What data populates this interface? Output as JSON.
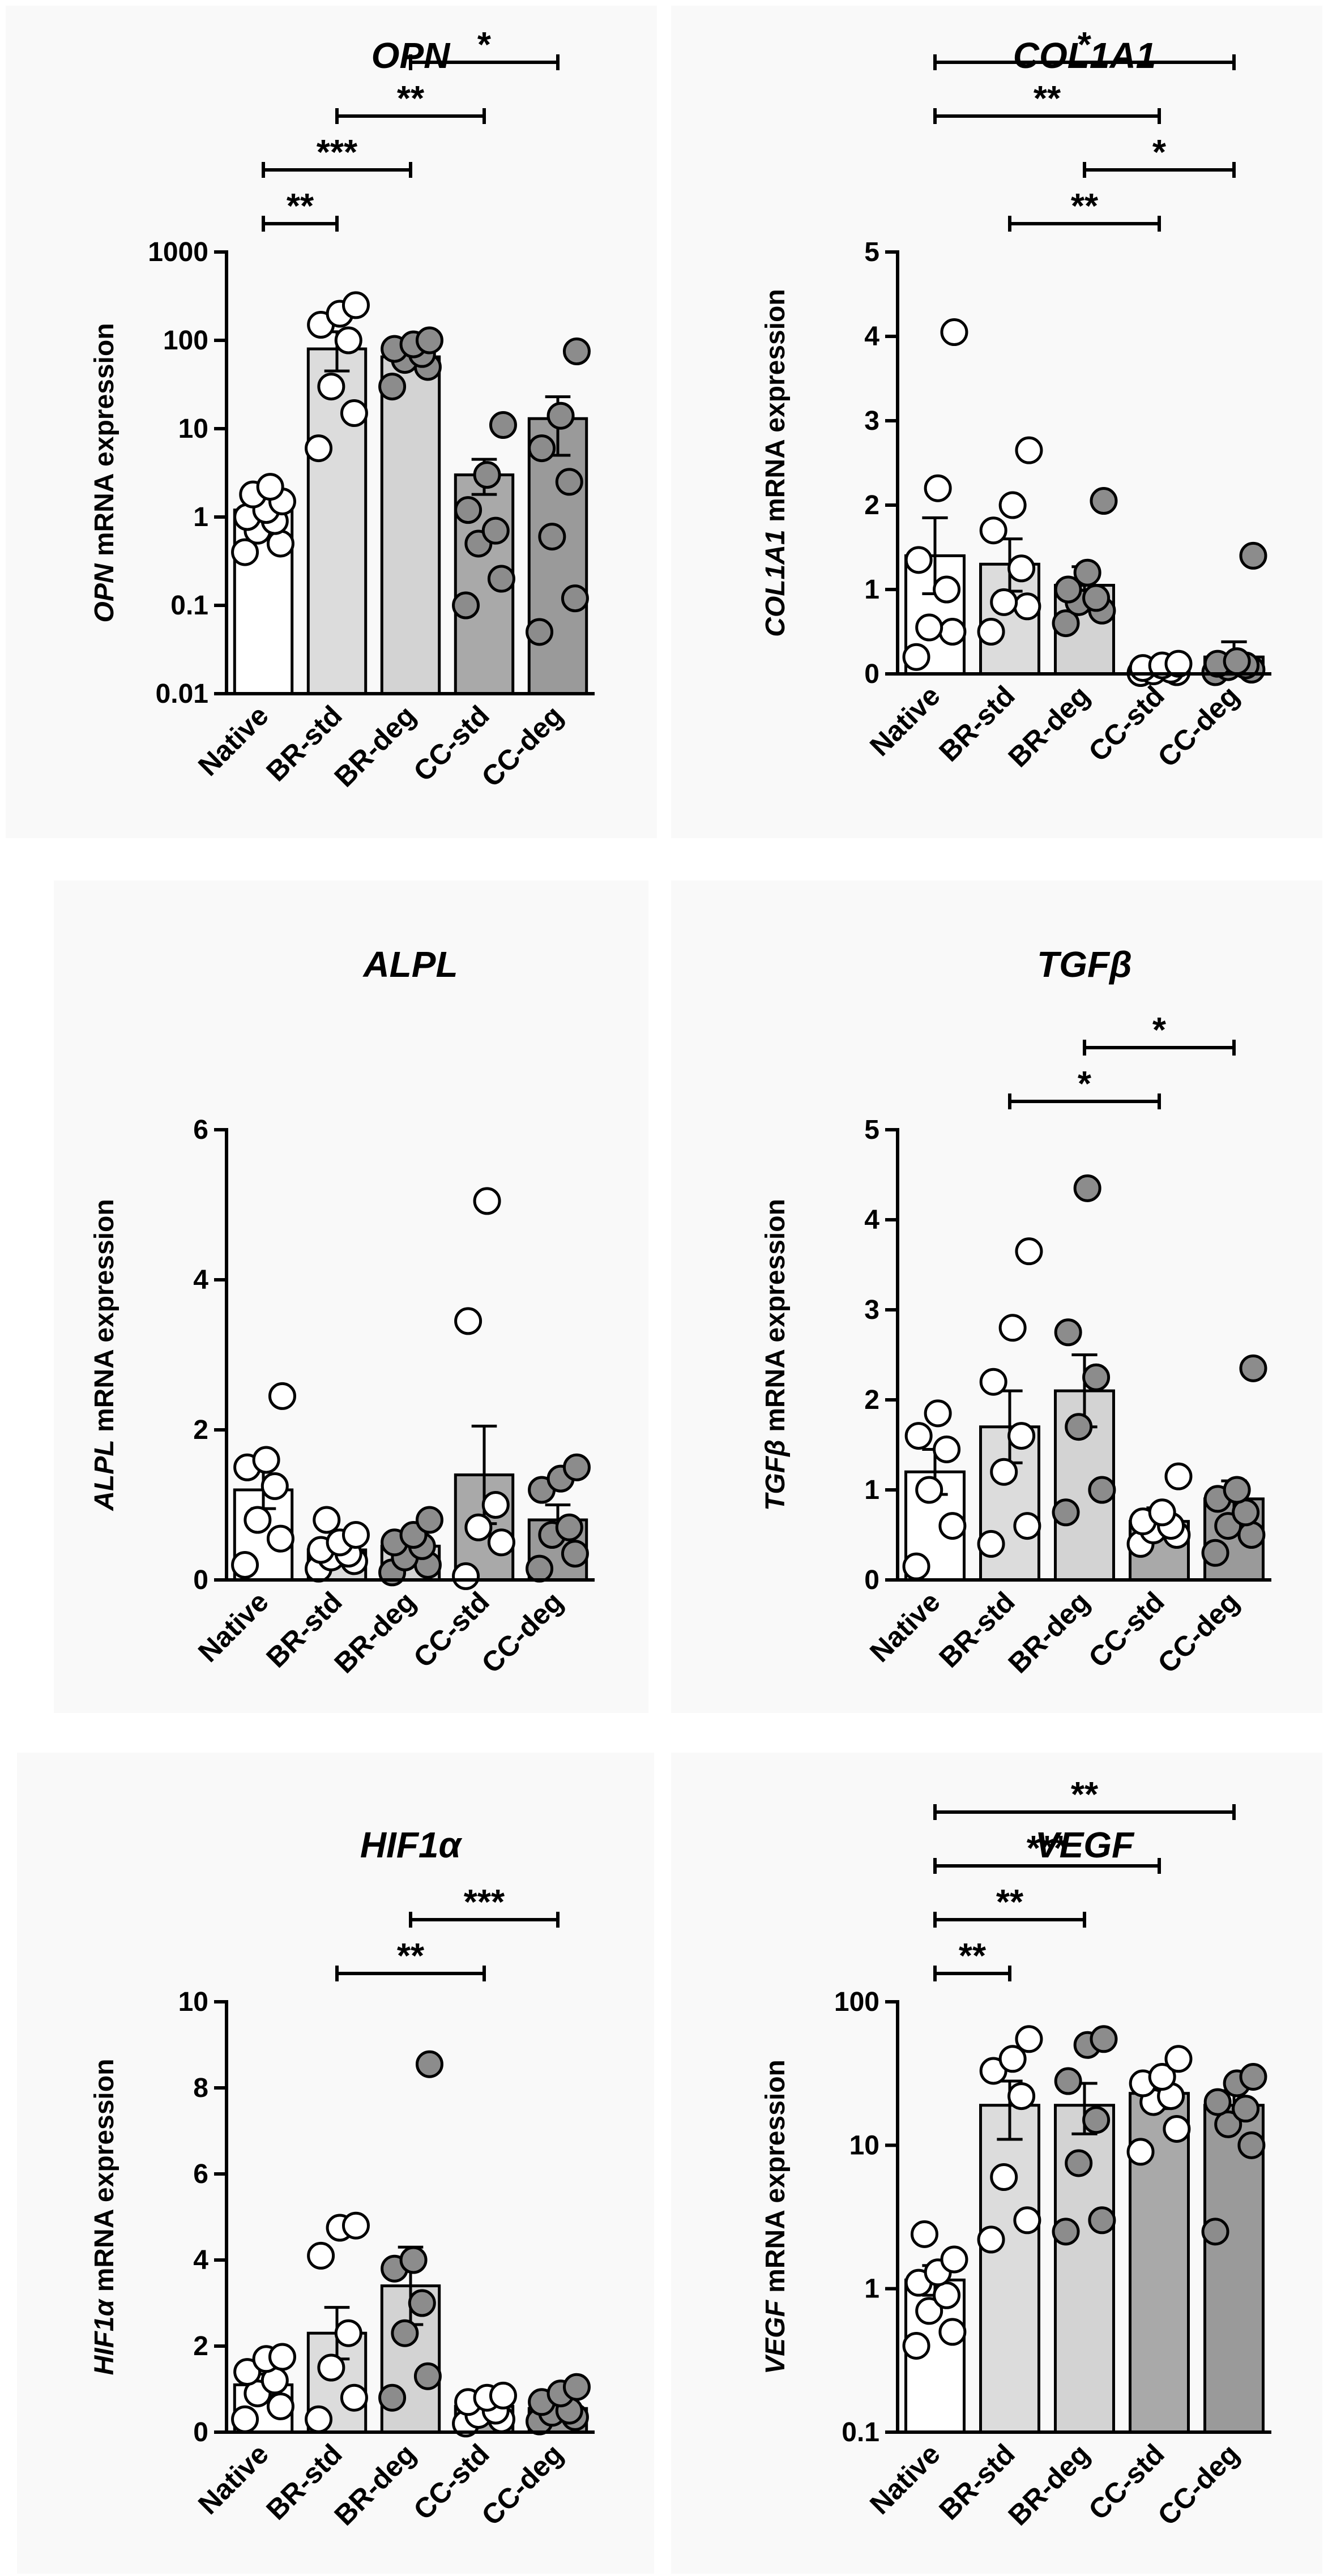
{
  "chart_data": [
    {
      "type": "bar",
      "title": "OPN",
      "ylabel_italic": "OPN",
      "ylabel_rest": " mRNA expression",
      "yscale": "log",
      "ylim": [
        0.01,
        1000
      ],
      "yticks": [
        "0.01",
        "0.1",
        "1",
        "10",
        "100",
        "1000"
      ],
      "categories": [
        "Native",
        "BR-std",
        "BR-deg",
        "CC-std",
        "CC-deg"
      ],
      "bar_colors": [
        "#ffffff",
        "#dcdcdc",
        "#d3d3d3",
        "#a9a9a9",
        "#9a9a9a"
      ],
      "dot_colors": [
        "#ffffff",
        "#ffffff",
        "#8c8c8c",
        "#8c8c8c",
        "#8c8c8c"
      ],
      "values": [
        1.2,
        80,
        65,
        3,
        13
      ],
      "sem_low": [
        0.9,
        45,
        50,
        1.8,
        5
      ],
      "sem_high": [
        1.6,
        125,
        85,
        4.5,
        23
      ],
      "points": [
        [
          0.4,
          0.5,
          0.7,
          0.9,
          1.0,
          1.2,
          1.5,
          1.8,
          2.2
        ],
        [
          6,
          15,
          30,
          100,
          150,
          200,
          250
        ],
        [
          30,
          50,
          60,
          70,
          80,
          90,
          100
        ],
        [
          0.1,
          0.2,
          0.5,
          0.7,
          1.2,
          3.0,
          11
        ],
        [
          0.05,
          0.12,
          0.6,
          2.5,
          6,
          14,
          75
        ]
      ],
      "significance": [
        {
          "from": 0,
          "to": 1,
          "label": "**"
        },
        {
          "from": 0,
          "to": 2,
          "label": "***"
        },
        {
          "from": 1,
          "to": 3,
          "label": "**"
        },
        {
          "from": 2,
          "to": 4,
          "label": "*"
        }
      ]
    },
    {
      "type": "bar",
      "title": "COL1A1",
      "ylabel_italic": "COL1A1",
      "ylabel_rest": " mRNA expression",
      "yscale": "linear",
      "ylim": [
        0,
        5
      ],
      "yticks": [
        "0",
        "1",
        "2",
        "3",
        "4",
        "5"
      ],
      "categories": [
        "Native",
        "BR-std",
        "BR-deg",
        "CC-std",
        "CC-deg"
      ],
      "bar_colors": [
        "#ffffff",
        "#dcdcdc",
        "#d3d3d3",
        "#a9a9a9",
        "#9a9a9a"
      ],
      "dot_colors": [
        "#ffffff",
        "#ffffff",
        "#8c8c8c",
        "#ffffff",
        "#8c8c8c"
      ],
      "values": [
        1.4,
        1.3,
        1.05,
        0.07,
        0.2
      ],
      "sem_low": [
        0.95,
        0.98,
        0.85,
        0.03,
        0.02
      ],
      "sem_high": [
        1.85,
        1.6,
        1.27,
        0.11,
        0.38
      ],
      "points": [
        [
          0.2,
          0.5,
          0.55,
          1.0,
          1.35,
          2.2,
          4.05
        ],
        [
          0.5,
          0.8,
          0.85,
          1.25,
          1.7,
          2.0,
          2.65
        ],
        [
          0.6,
          0.75,
          0.85,
          0.9,
          1.0,
          1.2,
          2.05
        ],
        [
          0.01,
          0.02,
          0.03,
          0.05,
          0.07,
          0.1,
          0.12
        ],
        [
          0.02,
          0.05,
          0.08,
          0.1,
          0.12,
          0.15,
          1.4
        ]
      ],
      "significance": [
        {
          "from": 0,
          "to": 3,
          "label": "**"
        },
        {
          "from": 0,
          "to": 4,
          "label": "*"
        },
        {
          "from": 1,
          "to": 3,
          "label": "**"
        },
        {
          "from": 2,
          "to": 4,
          "label": "*"
        }
      ]
    },
    {
      "type": "bar",
      "title": "ALPL",
      "ylabel_italic": "ALPL",
      "ylabel_rest": " mRNA expression",
      "yscale": "linear",
      "ylim": [
        0,
        6
      ],
      "yticks": [
        "0",
        "2",
        "4",
        "6"
      ],
      "categories": [
        "Native",
        "BR-std",
        "BR-deg",
        "CC-std",
        "CC-deg"
      ],
      "bar_colors": [
        "#ffffff",
        "#dcdcdc",
        "#d3d3d3",
        "#a9a9a9",
        "#9a9a9a"
      ],
      "dot_colors": [
        "#ffffff",
        "#ffffff",
        "#8c8c8c",
        "#ffffff",
        "#8c8c8c"
      ],
      "values": [
        1.2,
        0.4,
        0.45,
        1.4,
        0.8
      ],
      "sem_low": [
        0.95,
        0.28,
        0.28,
        0.75,
        0.6
      ],
      "sem_high": [
        1.5,
        0.52,
        0.62,
        2.05,
        1.0
      ],
      "points": [
        [
          0.2,
          0.55,
          0.8,
          1.25,
          1.5,
          1.6,
          2.45
        ],
        [
          0.15,
          0.25,
          0.3,
          0.35,
          0.4,
          0.5,
          0.6,
          0.8
        ],
        [
          0.1,
          0.2,
          0.3,
          0.45,
          0.5,
          0.6,
          0.8
        ],
        [
          0.05,
          0.5,
          0.7,
          1.0,
          3.45,
          5.05
        ],
        [
          0.15,
          0.35,
          0.6,
          0.7,
          1.2,
          1.35,
          1.5
        ]
      ],
      "significance": []
    },
    {
      "type": "bar",
      "title": "TGFβ",
      "ylabel_italic": "TGFβ",
      "ylabel_rest": " mRNA expression",
      "yscale": "linear",
      "ylim": [
        0,
        5
      ],
      "yticks": [
        "0",
        "1",
        "2",
        "3",
        "4",
        "5"
      ],
      "categories": [
        "Native",
        "BR-std",
        "BR-deg",
        "CC-std",
        "CC-deg"
      ],
      "bar_colors": [
        "#ffffff",
        "#dcdcdc",
        "#d3d3d3",
        "#a9a9a9",
        "#9a9a9a"
      ],
      "dot_colors": [
        "#ffffff",
        "#ffffff",
        "#8c8c8c",
        "#ffffff",
        "#8c8c8c"
      ],
      "values": [
        1.2,
        1.7,
        2.1,
        0.65,
        0.9
      ],
      "sem_low": [
        0.95,
        1.3,
        1.7,
        0.5,
        0.72
      ],
      "sem_high": [
        1.45,
        2.1,
        2.5,
        0.8,
        1.1
      ],
      "points": [
        [
          0.15,
          0.6,
          1.0,
          1.45,
          1.6,
          1.85
        ],
        [
          0.4,
          0.6,
          1.2,
          1.6,
          2.2,
          2.8,
          3.65
        ],
        [
          0.75,
          1.0,
          1.7,
          2.25,
          2.75,
          4.35
        ],
        [
          0.4,
          0.5,
          0.55,
          0.6,
          0.65,
          0.75,
          1.15
        ],
        [
          0.3,
          0.5,
          0.6,
          0.75,
          0.9,
          1.0,
          2.35
        ]
      ],
      "significance": [
        {
          "from": 1,
          "to": 3,
          "label": "*"
        },
        {
          "from": 2,
          "to": 4,
          "label": "*"
        }
      ]
    },
    {
      "type": "bar",
      "title": "HIF1α",
      "ylabel_italic": "HIF1α",
      "ylabel_rest": " mRNA expression",
      "yscale": "linear",
      "ylim": [
        0,
        10
      ],
      "yticks": [
        "0",
        "2",
        "4",
        "6",
        "8",
        "10"
      ],
      "categories": [
        "Native",
        "BR-std",
        "BR-deg",
        "CC-std",
        "CC-deg"
      ],
      "bar_colors": [
        "#ffffff",
        "#dcdcdc",
        "#d3d3d3",
        "#a9a9a9",
        "#9a9a9a"
      ],
      "dot_colors": [
        "#ffffff",
        "#ffffff",
        "#8c8c8c",
        "#ffffff",
        "#8c8c8c"
      ],
      "values": [
        1.1,
        2.3,
        3.4,
        0.6,
        0.55
      ],
      "sem_low": [
        0.85,
        1.7,
        2.5,
        0.45,
        0.42
      ],
      "sem_high": [
        1.35,
        2.9,
        4.3,
        0.75,
        0.68
      ],
      "points": [
        [
          0.3,
          0.6,
          0.9,
          1.2,
          1.4,
          1.7,
          1.75
        ],
        [
          0.3,
          0.8,
          1.5,
          2.3,
          4.1,
          4.75,
          4.8
        ],
        [
          0.8,
          1.3,
          2.3,
          3.0,
          3.8,
          4.0,
          8.55
        ],
        [
          0.2,
          0.3,
          0.4,
          0.5,
          0.7,
          0.8,
          0.85
        ],
        [
          0.25,
          0.35,
          0.45,
          0.5,
          0.7,
          0.9,
          1.05
        ]
      ],
      "significance": [
        {
          "from": 1,
          "to": 3,
          "label": "**"
        },
        {
          "from": 2,
          "to": 4,
          "label": "***"
        }
      ]
    },
    {
      "type": "bar",
      "title": "VEGF",
      "ylabel_italic": "VEGF",
      "ylabel_rest": " mRNA expression",
      "yscale": "log",
      "ylim": [
        0.1,
        100
      ],
      "yticks": [
        "0.1",
        "1",
        "10",
        "100"
      ],
      "categories": [
        "Native",
        "BR-std",
        "BR-deg",
        "CC-std",
        "CC-deg"
      ],
      "bar_colors": [
        "#ffffff",
        "#dcdcdc",
        "#d3d3d3",
        "#a9a9a9",
        "#9a9a9a"
      ],
      "dot_colors": [
        "#ffffff",
        "#ffffff",
        "#8c8c8c",
        "#ffffff",
        "#8c8c8c"
      ],
      "values": [
        1.15,
        19,
        19,
        23,
        19
      ],
      "sem_low": [
        0.9,
        11,
        12,
        18,
        15
      ],
      "sem_high": [
        1.45,
        28,
        27,
        28,
        24
      ],
      "points": [
        [
          0.4,
          0.5,
          0.7,
          0.9,
          1.1,
          1.3,
          1.6,
          2.4
        ],
        [
          2.2,
          3.0,
          6.0,
          22,
          33,
          40,
          55
        ],
        [
          2.5,
          3.0,
          7.5,
          15,
          28,
          50,
          55
        ],
        [
          9,
          13,
          20,
          22,
          27,
          30,
          40
        ],
        [
          2.5,
          10,
          14,
          18,
          20,
          27,
          30
        ]
      ],
      "significance": [
        {
          "from": 0,
          "to": 1,
          "label": "**"
        },
        {
          "from": 0,
          "to": 2,
          "label": "**"
        },
        {
          "from": 0,
          "to": 3,
          "label": "***"
        },
        {
          "from": 0,
          "to": 4,
          "label": "**"
        }
      ]
    }
  ]
}
